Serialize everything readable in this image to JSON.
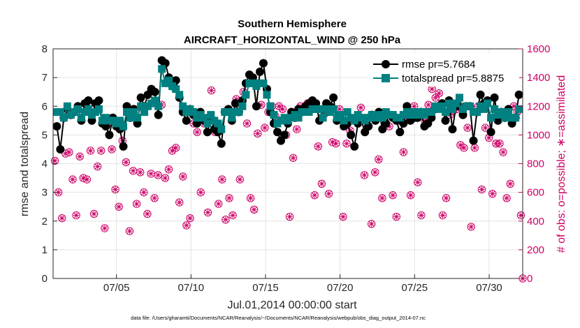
{
  "chart_data": {
    "type": "line",
    "title": "Southern Hemisphere",
    "subtitle": "AIRCRAFT_HORIZONTAL_WIND @ 250 hPa",
    "xlabel": "Jul.01,2014 00:00:00 start",
    "ylabel_left": "rmse and totalspread",
    "ylabel_right": "# of obs: o=possible; ∗=assimilated",
    "footer": "data file: /Users/gharamti/Documents/NCAR/Reanalysis/~/Documents/NCAR/Reanalysis/webpub/obs_diag_output_2014-07.nc",
    "x_unit": "day of month (July 2014)",
    "xlim": [
      0.75,
      32.25
    ],
    "ylim_left": [
      0,
      8
    ],
    "ylim_right": [
      0,
      1600
    ],
    "x_ticks": [
      {
        "x": 5,
        "label": "07/05"
      },
      {
        "x": 10,
        "label": "07/10"
      },
      {
        "x": 15,
        "label": "07/15"
      },
      {
        "x": 20,
        "label": "07/20"
      },
      {
        "x": 25,
        "label": "07/25"
      },
      {
        "x": 30,
        "label": "07/30"
      }
    ],
    "y_ticks_left": [
      "0",
      "1",
      "2",
      "3",
      "4",
      "5",
      "6",
      "7",
      "8"
    ],
    "y_ticks_right": [
      "0",
      "200",
      "400",
      "600",
      "800",
      "1000",
      "1200",
      "1400",
      "1600"
    ],
    "grid": true,
    "legend_position": "top-right",
    "colors": {
      "rmse": "#000000",
      "totalspread": "#008080",
      "obs": "#cc0066"
    },
    "series": [
      {
        "name": "rmse",
        "legend": "rmse pr=5.7684",
        "axis": "left",
        "values": [
          5.3,
          4.5,
          5.6,
          5.9,
          5.7,
          5.8,
          6.0,
          5.5,
          6.1,
          6.2,
          5.5,
          6.1,
          6.2,
          5.4,
          5.3,
          5.0,
          5.6,
          5.3,
          5.2,
          4.6,
          6.0,
          5.6,
          5.9,
          5.4,
          6.3,
          6.0,
          6.4,
          6.6,
          6.5,
          5.7,
          7.6,
          7.5,
          7.0,
          6.7,
          6.9,
          6.3,
          5.8,
          5.5,
          5.9,
          5.7,
          5.4,
          5.8,
          5.5,
          5.1,
          5.6,
          5.2,
          5.1,
          4.7,
          5.8,
          5.9,
          5.5,
          6.1,
          5.8,
          6.2,
          6.8,
          7.1,
          7.0,
          6.0,
          7.2,
          7.5,
          6.6,
          5.8,
          5.4,
          5.1,
          4.8,
          5.0,
          5.4,
          5.8,
          5.6,
          5.9,
          5.8,
          6.0,
          6.1,
          6.2,
          6.1,
          5.5,
          5.9,
          6.1,
          6.0,
          6.3,
          5.5,
          5.6,
          5.3,
          5.4,
          5.0,
          4.6,
          5.4,
          5.5,
          5.1,
          5.3,
          5.7,
          5.5,
          5.8,
          5.2,
          5.4,
          5.7,
          5.6,
          5.5,
          5.1,
          5.4,
          6.0,
          5.5,
          5.6,
          5.6,
          5.8,
          5.3,
          5.4,
          5.6,
          5.9,
          6.0,
          6.1,
          5.5,
          6.2,
          5.2,
          6.0,
          6.0,
          5.7,
          6.0,
          6.0,
          4.8,
          5.8,
          6.4,
          6.1,
          6.2,
          5.1,
          6.3,
          5.5,
          5.8,
          5.6,
          5.9,
          5.4,
          5.6,
          6.4
        ]
      },
      {
        "name": "totalspread",
        "legend": "totalspread pr=5.8875",
        "axis": "left",
        "values": [
          5.8,
          5.8,
          5.6,
          6.0,
          5.7,
          5.8,
          5.9,
          5.6,
          5.8,
          5.9,
          5.7,
          5.8,
          5.9,
          5.5,
          5.6,
          5.5,
          5.5,
          5.4,
          5.5,
          5.3,
          5.8,
          5.6,
          5.8,
          5.6,
          6.0,
          5.8,
          6.0,
          6.1,
          6.2,
          6.0,
          7.3,
          6.8,
          6.9,
          6.7,
          6.6,
          6.4,
          6.0,
          5.8,
          5.9,
          5.8,
          5.6,
          5.7,
          5.6,
          5.4,
          5.7,
          5.5,
          5.4,
          5.2,
          5.8,
          5.8,
          5.6,
          5.8,
          5.8,
          6.0,
          6.4,
          6.8,
          6.8,
          6.7,
          6.8,
          6.8,
          6.4,
          6.0,
          5.7,
          5.4,
          5.5,
          5.6,
          5.5,
          5.6,
          5.7,
          5.6,
          5.8,
          5.8,
          5.8,
          5.9,
          5.9,
          5.9,
          5.6,
          5.9,
          5.8,
          5.9,
          5.6,
          5.7,
          5.5,
          5.8,
          5.6,
          5.5,
          5.7,
          5.6,
          5.5,
          5.6,
          5.7,
          5.6,
          5.7,
          5.6,
          5.8,
          5.7,
          5.7,
          5.6,
          5.6,
          5.7,
          5.8,
          5.7,
          5.8,
          5.7,
          5.8,
          5.7,
          5.8,
          5.8,
          6.0,
          5.9,
          6.0,
          5.8,
          6.1,
          5.9,
          6.1,
          6.3,
          5.9,
          6.0,
          6.0,
          5.8,
          5.8,
          6.0,
          5.9,
          6.1,
          5.6,
          5.9,
          5.7,
          5.8,
          5.6,
          5.8,
          5.6,
          5.6,
          5.9
        ]
      }
    ],
    "obs_possible": [
      820,
      600,
      420,
      870,
      880,
      690,
      440,
      850,
      700,
      690,
      890,
      450,
      780,
      890,
      350,
      1080,
      900,
      620,
      500,
      960,
      810,
      330,
      750,
      520,
      740,
      600,
      450,
      730,
      560,
      720,
      1210,
      700,
      760,
      890,
      910,
      530,
      710,
      370,
      420,
      1080,
      1020,
      600,
      1080,
      460,
      1310,
      1020,
      520,
      690,
      410,
      560,
      440,
      1250,
      690,
      1300,
      1080,
      560,
      480,
      1010,
      1210,
      1050,
      1160,
      1200,
      1130,
      1200,
      1180,
      1000,
      430,
      840,
      1040,
      1200,
      1180,
      1220,
      1230,
      580,
      920,
      660,
      1150,
      590,
      950,
      940,
      1180,
      430,
      940,
      1030,
      1100,
      1100,
      1190,
      720,
      1060,
      380,
      740,
      830,
      560,
      1150,
      1060,
      580,
      430,
      1100,
      880,
      1110,
      580,
      1200,
      670,
      440,
      1100,
      1210,
      1320,
      1260,
      1290,
      440,
      560,
      1140,
      1170,
      1180,
      930,
      910,
      1050,
      360,
      910,
      1200,
      620,
      1050,
      980,
      590,
      940,
      940,
      880,
      560,
      660,
      1200,
      1160,
      440
    ],
    "obs_assimilated": [
      820,
      600,
      420,
      870,
      880,
      690,
      440,
      850,
      700,
      690,
      890,
      450,
      780,
      890,
      350,
      1080,
      900,
      620,
      500,
      960,
      810,
      330,
      750,
      520,
      740,
      600,
      450,
      730,
      560,
      720,
      1210,
      700,
      760,
      890,
      910,
      530,
      710,
      370,
      420,
      1080,
      1020,
      600,
      1080,
      460,
      1310,
      1020,
      520,
      690,
      410,
      560,
      440,
      1250,
      690,
      1300,
      1080,
      560,
      480,
      1010,
      1210,
      1050,
      1160,
      1200,
      1130,
      1200,
      1180,
      1000,
      430,
      840,
      1040,
      1200,
      1180,
      1220,
      1230,
      580,
      920,
      660,
      1150,
      590,
      950,
      940,
      1180,
      430,
      940,
      1030,
      1100,
      1100,
      1190,
      720,
      1060,
      380,
      740,
      830,
      560,
      1150,
      1060,
      580,
      430,
      1100,
      880,
      1110,
      580,
      1200,
      670,
      440,
      1100,
      1210,
      1320,
      1260,
      1290,
      440,
      560,
      1140,
      1170,
      1180,
      930,
      910,
      1050,
      360,
      910,
      1200,
      620,
      1050,
      980,
      590,
      940,
      940,
      880,
      560,
      660,
      1200,
      1160,
      440
    ],
    "extra_right_marker": {
      "x": 32.25,
      "value": 0
    }
  }
}
